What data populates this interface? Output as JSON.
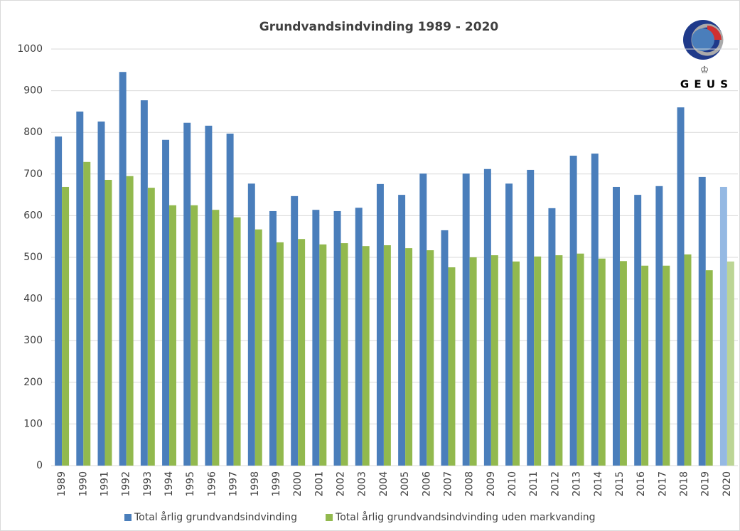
{
  "chart_data": {
    "type": "bar",
    "title": "Grundvandsindvinding 1989 - 2020",
    "logo": "G E U S",
    "categories": [
      "1989",
      "1990",
      "1991",
      "1992",
      "1993",
      "1994",
      "1995",
      "1996",
      "1997",
      "1998",
      "1999",
      "2000",
      "2001",
      "2002",
      "2003",
      "2004",
      "2005",
      "2006",
      "2007",
      "2008",
      "2009",
      "2010",
      "2011",
      "2012",
      "2013",
      "2014",
      "2015",
      "2016",
      "2017",
      "2018",
      "2019",
      "2020"
    ],
    "series": [
      {
        "name": "Total årlig grundvandsindvinding",
        "color": "#4a7ebb",
        "colors": [
          "#4a7ebb",
          "#4a7ebb",
          "#4a7ebb",
          "#4a7ebb",
          "#4a7ebb",
          "#4a7ebb",
          "#4a7ebb",
          "#4a7ebb",
          "#4a7ebb",
          "#4a7ebb",
          "#4a7ebb",
          "#4a7ebb",
          "#4a7ebb",
          "#4a7ebb",
          "#4a7ebb",
          "#4a7ebb",
          "#4a7ebb",
          "#4a7ebb",
          "#4a7ebb",
          "#4a7ebb",
          "#4a7ebb",
          "#4a7ebb",
          "#4a7ebb",
          "#4a7ebb",
          "#4a7ebb",
          "#4a7ebb",
          "#4a7ebb",
          "#4a7ebb",
          "#4a7ebb",
          "#4a7ebb",
          "#4a7ebb",
          "#95b9e3"
        ],
        "values": [
          790,
          850,
          826,
          945,
          877,
          782,
          823,
          816,
          797,
          677,
          611,
          647,
          614,
          611,
          619,
          676,
          650,
          701,
          565,
          701,
          712,
          677,
          710,
          618,
          744,
          749,
          669,
          650,
          671,
          860,
          693,
          669
        ]
      },
      {
        "name": "Total årlig grundvandsindvinding uden markvanding",
        "color": "#92b94e",
        "colors": [
          "#92b94e",
          "#92b94e",
          "#92b94e",
          "#92b94e",
          "#92b94e",
          "#92b94e",
          "#92b94e",
          "#92b94e",
          "#92b94e",
          "#92b94e",
          "#92b94e",
          "#92b94e",
          "#92b94e",
          "#92b94e",
          "#92b94e",
          "#92b94e",
          "#92b94e",
          "#92b94e",
          "#92b94e",
          "#92b94e",
          "#92b94e",
          "#92b94e",
          "#92b94e",
          "#92b94e",
          "#92b94e",
          "#92b94e",
          "#92b94e",
          "#92b94e",
          "#92b94e",
          "#92b94e",
          "#92b94e",
          "#bcd595"
        ],
        "values": [
          669,
          729,
          686,
          695,
          667,
          625,
          625,
          614,
          596,
          567,
          536,
          544,
          531,
          534,
          527,
          529,
          522,
          517,
          476,
          500,
          505,
          490,
          502,
          505,
          509,
          497,
          491,
          480,
          480,
          507,
          469,
          490
        ]
      }
    ],
    "ylim": [
      0,
      1000
    ],
    "yticks": [
      0,
      100,
      200,
      300,
      400,
      500,
      600,
      700,
      800,
      900,
      1000
    ],
    "grid": true,
    "legend": "bottom"
  }
}
